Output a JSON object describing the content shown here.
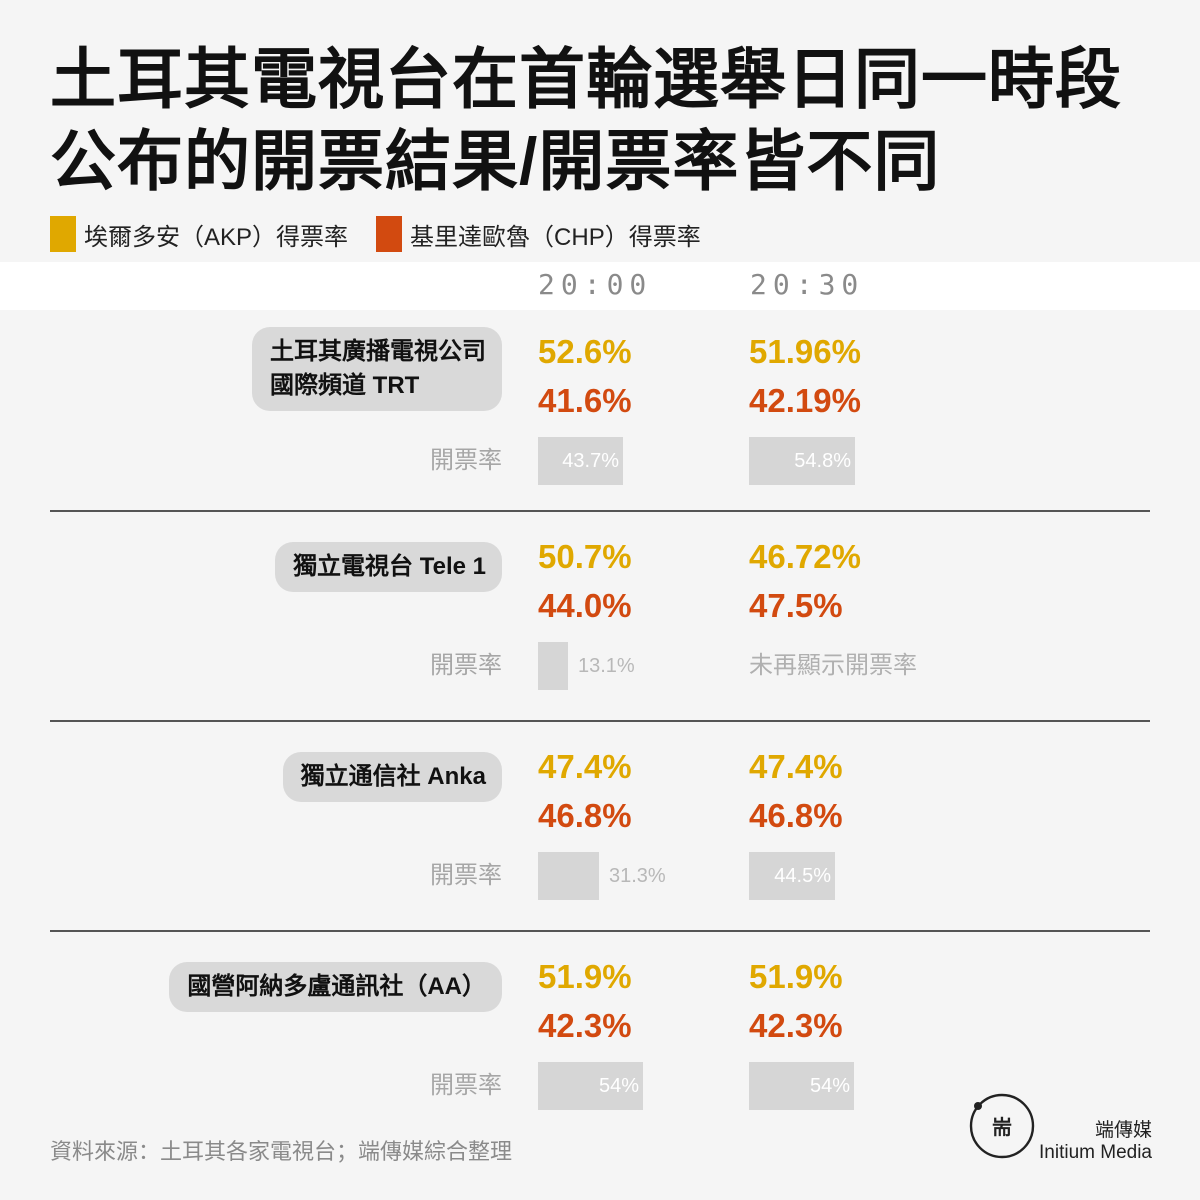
{
  "title": {
    "line1": "土耳其電視台在首輪選舉日同一時段",
    "line2": "公布的開票結果/開票率皆不同"
  },
  "legend": {
    "akp": "埃爾多安（AKP）得票率",
    "chp": "基里達歐魯（CHP）得票率"
  },
  "colors": {
    "akp": "#e0a800",
    "chp": "#d24a10",
    "bar": "#d6d6d6"
  },
  "times": [
    "20:00",
    "20:30"
  ],
  "rate_label": "開票率",
  "chart_data": {
    "type": "table",
    "columns": [
      "20:00",
      "20:30"
    ],
    "series": [
      {
        "name": "埃爾多安（AKP）得票率",
        "color": "#e0a800"
      },
      {
        "name": "基里達歐魯（CHP）得票率",
        "color": "#d24a10"
      }
    ],
    "rows": [
      {
        "source_line1": "土耳其廣播電視公司",
        "source_line2": "國際頻道 TRT",
        "t2000": {
          "akp": "52.6%",
          "chp": "41.6%",
          "rate": 43.7,
          "rate_label": "43.7%"
        },
        "t2030": {
          "akp": "51.96%",
          "chp": "42.19%",
          "rate": 54.8,
          "rate_label": "54.8%"
        }
      },
      {
        "source_line1": "獨立電視台 Tele 1",
        "t2000": {
          "akp": "50.7%",
          "chp": "44.0%",
          "rate": 13.1,
          "rate_label": "13.1%"
        },
        "t2030": {
          "akp": "46.72%",
          "chp": "47.5%",
          "note": "未再顯示開票率"
        }
      },
      {
        "source_line1": "獨立通信社 Anka",
        "t2000": {
          "akp": "47.4%",
          "chp": "46.8%",
          "rate": 31.3,
          "rate_label": "31.3%"
        },
        "t2030": {
          "akp": "47.4%",
          "chp": "46.8%",
          "rate": 44.5,
          "rate_label": "44.5%"
        }
      },
      {
        "source_line1": "國營阿納多盧通訊社（AA）",
        "t2000": {
          "akp": "51.9%",
          "chp": "42.3%",
          "rate": 54,
          "rate_label": "54%"
        },
        "t2030": {
          "akp": "51.9%",
          "chp": "42.3%",
          "rate": 54,
          "rate_label": "54%"
        }
      }
    ]
  },
  "footer": {
    "source": "資料來源：土耳其各家電視台；端傳媒綜合整理",
    "brand_zh": "端傳媒",
    "brand_en": "Initium Media"
  }
}
